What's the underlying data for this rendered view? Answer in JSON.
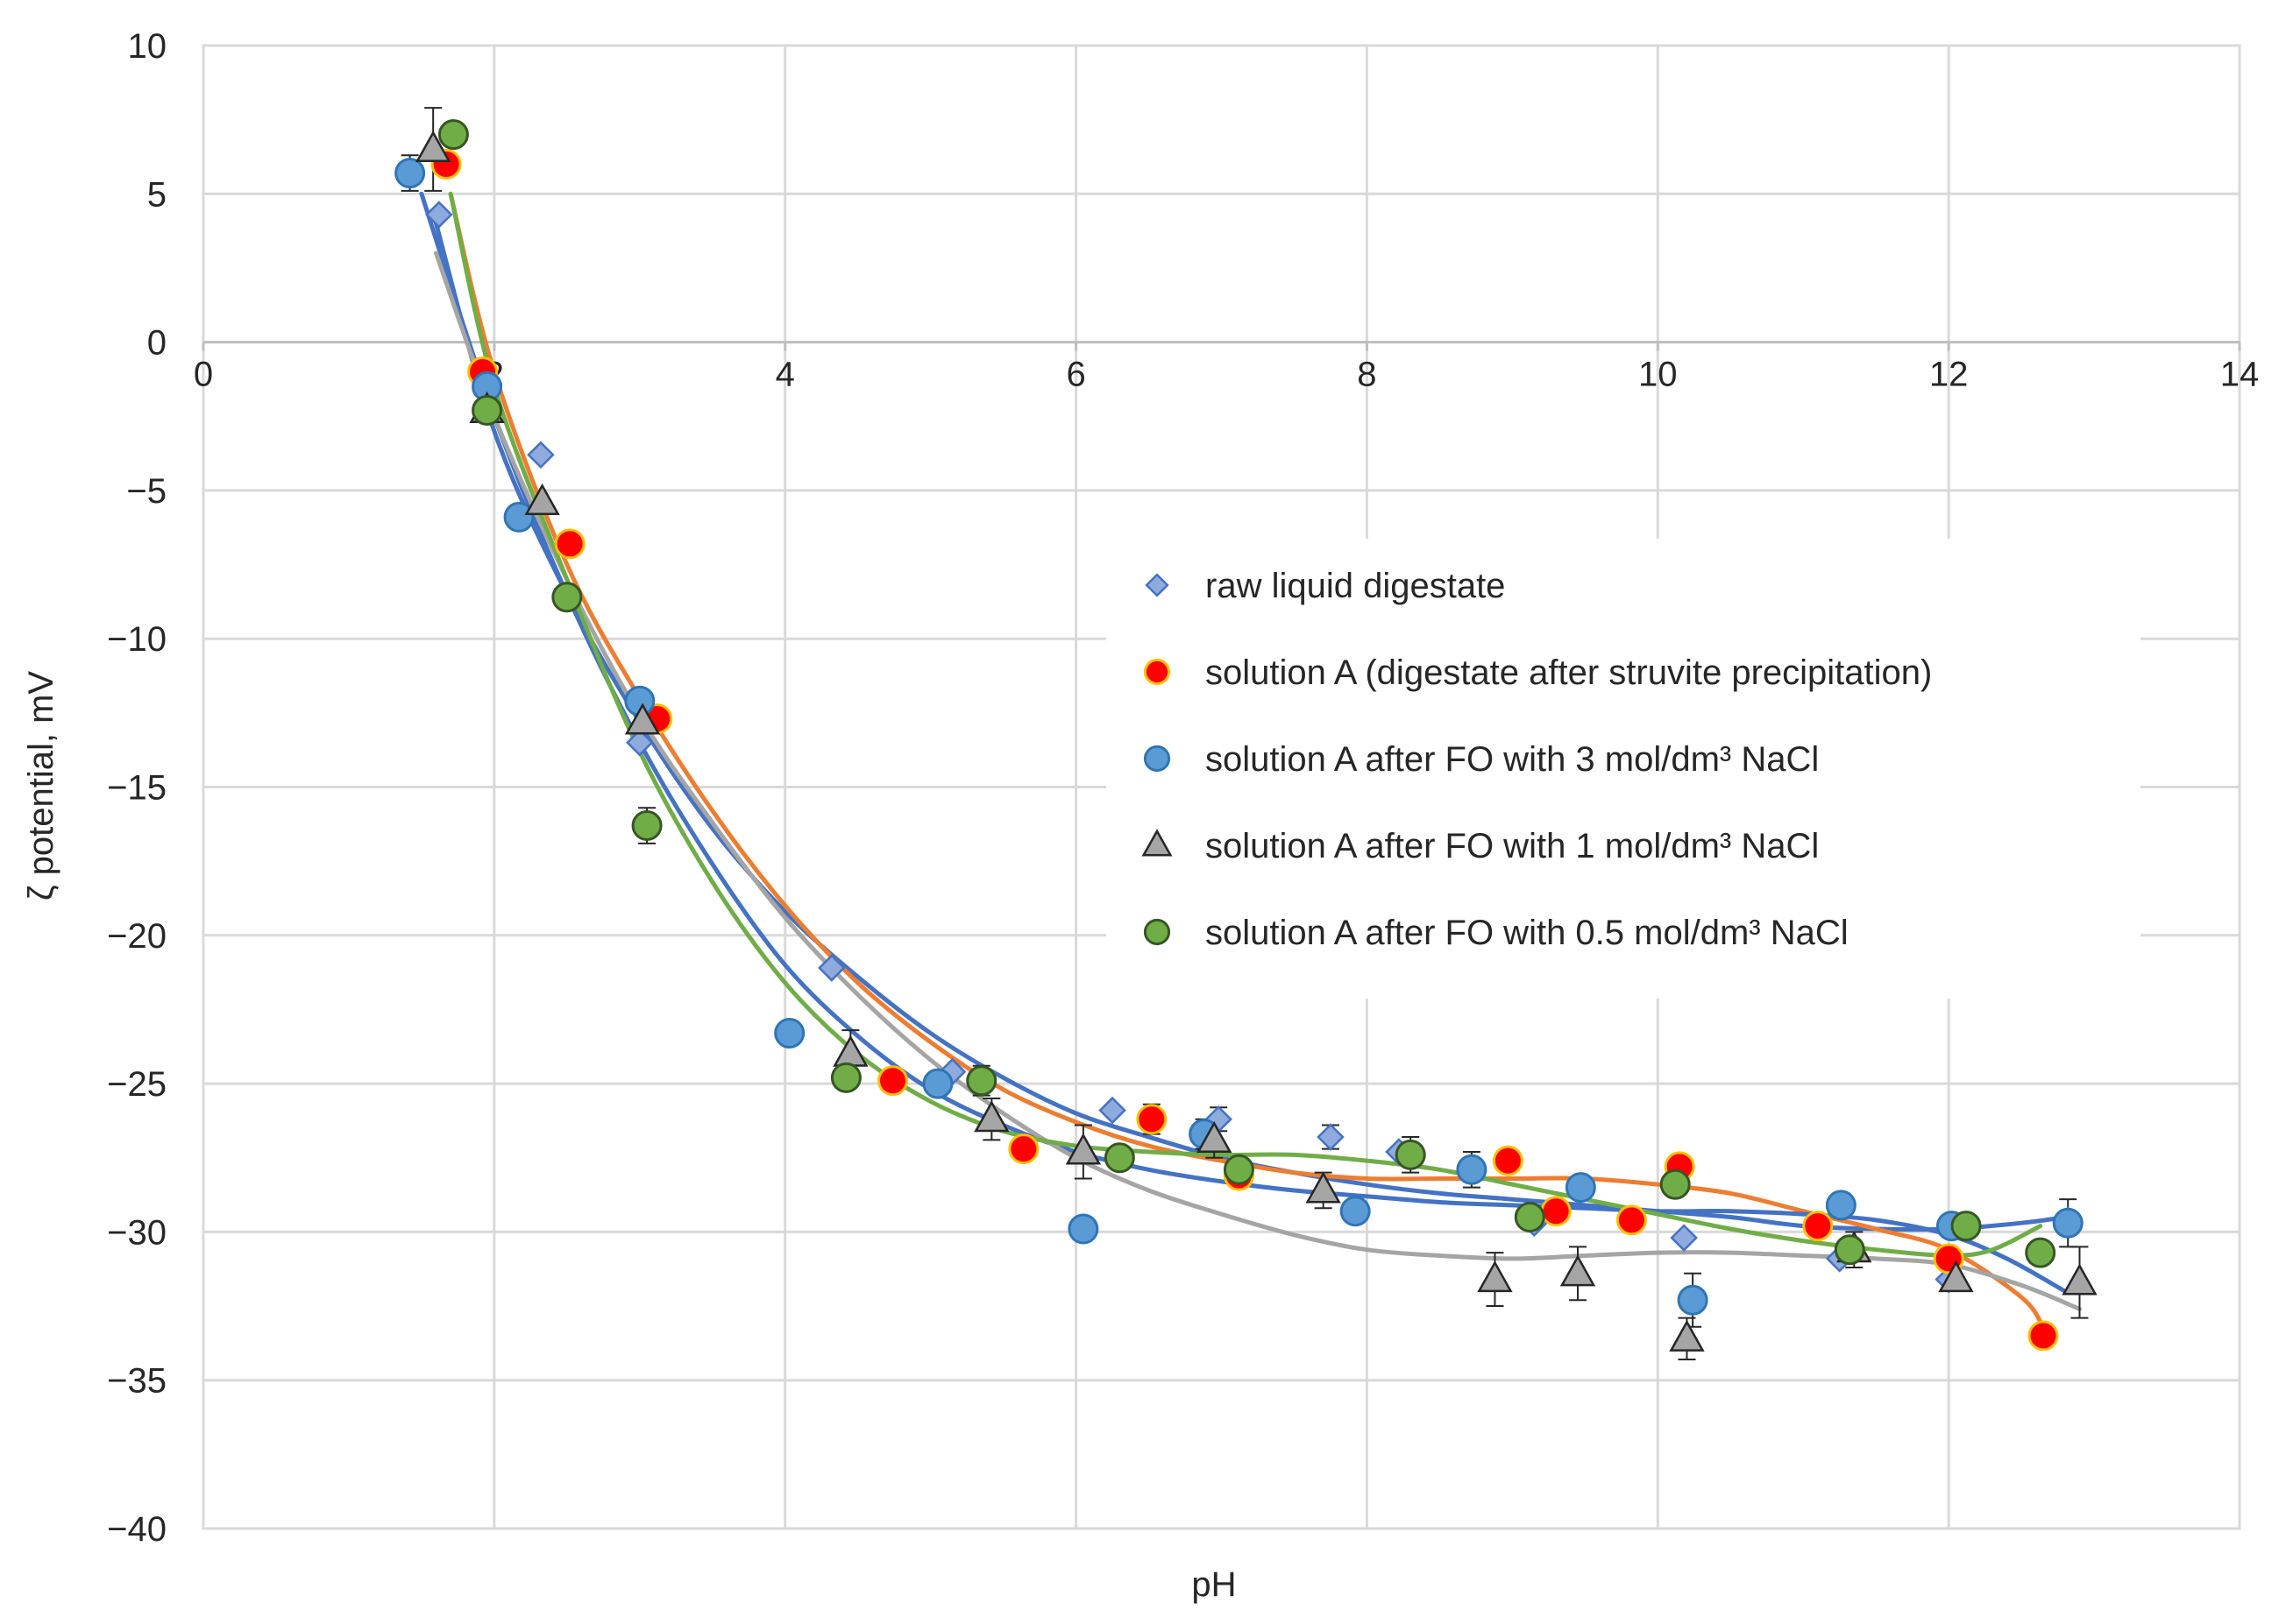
{
  "chart_data": {
    "type": "scatter",
    "title": "",
    "xlabel": "pH",
    "ylabel": "ζ potential, mV",
    "xlim": [
      0,
      14
    ],
    "ylim": [
      -40,
      10
    ],
    "xticks": [
      0,
      2,
      4,
      6,
      8,
      10,
      12,
      14
    ],
    "yticks": [
      10,
      5,
      0,
      -5,
      -10,
      -15,
      -20,
      -25,
      -30,
      -35,
      -40
    ],
    "xtick_labels": [
      "0",
      "2",
      "4",
      "6",
      "8",
      "10",
      "12",
      "14"
    ],
    "ytick_labels": [
      "10",
      "5",
      "0",
      "−5",
      "−10",
      "−15",
      "−20",
      "−25",
      "−30",
      "−35",
      "−40"
    ],
    "grid": true,
    "legend_position": "center-right",
    "series": [
      {
        "name": "raw liquid digestate",
        "marker": "diamond",
        "color": "#8faadc",
        "edge": "#4472c4",
        "trend_color": "#4472c4",
        "points": [
          [
            1.62,
            4.3,
            0
          ],
          [
            1.92,
            -1.2,
            0
          ],
          [
            2.32,
            -3.8,
            0
          ],
          [
            3.0,
            -13.5,
            0
          ],
          [
            4.32,
            -21.1,
            0
          ],
          [
            5.15,
            -24.6,
            0
          ],
          [
            6.25,
            -25.9,
            0
          ],
          [
            6.98,
            -26.2,
            0.4
          ],
          [
            7.75,
            -26.8,
            0.4
          ],
          [
            8.22,
            -27.3,
            0
          ],
          [
            9.15,
            -29.7,
            0
          ],
          [
            10.18,
            -30.2,
            0
          ],
          [
            11.25,
            -30.9,
            0
          ],
          [
            12.0,
            -31.6,
            0
          ],
          [
            12.82,
            -29.6,
            0
          ]
        ],
        "trend": [
          [
            1.6,
            4.0
          ],
          [
            2.0,
            -3.0
          ],
          [
            2.5,
            -8.5
          ],
          [
            3.0,
            -12.8
          ],
          [
            3.5,
            -16.4
          ],
          [
            4.0,
            -19.2
          ],
          [
            4.5,
            -21.4
          ],
          [
            5.0,
            -23.3
          ],
          [
            5.5,
            -24.8
          ],
          [
            6.0,
            -26.0
          ],
          [
            6.5,
            -26.8
          ],
          [
            7.0,
            -27.5
          ],
          [
            7.5,
            -28.0
          ],
          [
            8.0,
            -28.4
          ],
          [
            8.5,
            -28.7
          ],
          [
            9.0,
            -28.9
          ],
          [
            9.5,
            -29.1
          ],
          [
            10.0,
            -29.3
          ],
          [
            10.5,
            -29.5
          ],
          [
            11.0,
            -29.8
          ],
          [
            11.5,
            -29.9
          ],
          [
            12.0,
            -29.9
          ],
          [
            12.5,
            -29.7
          ],
          [
            12.8,
            -29.5
          ]
        ]
      },
      {
        "name": "solution A (digestate after struvite precipitation)",
        "marker": "circle",
        "color": "#ff0000",
        "edge": "#ffc000",
        "trend_color": "#ed7d31",
        "points": [
          [
            1.67,
            6.0,
            0
          ],
          [
            1.92,
            -1.0,
            0
          ],
          [
            2.52,
            -6.8,
            0
          ],
          [
            3.12,
            -12.7,
            0
          ],
          [
            4.74,
            -24.9,
            0
          ],
          [
            5.64,
            -27.2,
            0
          ],
          [
            6.52,
            -26.2,
            0.5
          ],
          [
            7.12,
            -28.1,
            0
          ],
          [
            8.97,
            -27.6,
            0
          ],
          [
            9.3,
            -29.3,
            0
          ],
          [
            9.82,
            -29.6,
            0
          ],
          [
            10.15,
            -27.8,
            0
          ],
          [
            11.1,
            -29.8,
            0
          ],
          [
            12.0,
            -30.9,
            0
          ],
          [
            12.65,
            -33.5,
            0
          ]
        ],
        "trend": [
          [
            1.7,
            5.0
          ],
          [
            2.0,
            -1.0
          ],
          [
            2.5,
            -7.5
          ],
          [
            3.0,
            -12.0
          ],
          [
            3.5,
            -15.8
          ],
          [
            4.0,
            -19.0
          ],
          [
            4.5,
            -21.6
          ],
          [
            5.0,
            -23.6
          ],
          [
            5.5,
            -25.2
          ],
          [
            6.0,
            -26.3
          ],
          [
            6.5,
            -27.1
          ],
          [
            7.0,
            -27.6
          ],
          [
            7.5,
            -28.0
          ],
          [
            8.0,
            -28.2
          ],
          [
            8.5,
            -28.2
          ],
          [
            9.0,
            -28.2
          ],
          [
            9.5,
            -28.2
          ],
          [
            10.0,
            -28.4
          ],
          [
            10.5,
            -28.7
          ],
          [
            11.0,
            -29.3
          ],
          [
            11.5,
            -29.9
          ],
          [
            12.0,
            -30.6
          ],
          [
            12.5,
            -32.2
          ],
          [
            12.65,
            -33.2
          ]
        ]
      },
      {
        "name": "solution A after FO with 3 mol/dm³ NaCl",
        "marker": "circle",
        "color": "#5b9bd5",
        "edge": "#2e75b6",
        "trend_color": "#4472c4",
        "points": [
          [
            1.42,
            5.7,
            0.6
          ],
          [
            1.95,
            -1.5,
            0
          ],
          [
            2.17,
            -5.9,
            0
          ],
          [
            3.0,
            -12.1,
            0
          ],
          [
            4.03,
            -23.3,
            0
          ],
          [
            5.05,
            -25.0,
            0
          ],
          [
            6.05,
            -29.9,
            0
          ],
          [
            6.88,
            -26.7,
            0.5
          ],
          [
            7.92,
            -29.3,
            0
          ],
          [
            8.72,
            -27.9,
            0.6
          ],
          [
            9.47,
            -28.5,
            0
          ],
          [
            10.24,
            -32.3,
            0.9
          ],
          [
            11.26,
            -29.1,
            0
          ],
          [
            12.02,
            -29.8,
            0
          ],
          [
            12.82,
            -29.7,
            0.8
          ]
        ],
        "trend": [
          [
            1.5,
            5.0
          ],
          [
            2.0,
            -2.5
          ],
          [
            2.5,
            -8.5
          ],
          [
            3.0,
            -13.5
          ],
          [
            3.5,
            -17.6
          ],
          [
            4.0,
            -21.0
          ],
          [
            4.5,
            -23.4
          ],
          [
            5.0,
            -25.2
          ],
          [
            5.5,
            -26.4
          ],
          [
            6.0,
            -27.3
          ],
          [
            6.5,
            -27.9
          ],
          [
            7.0,
            -28.3
          ],
          [
            7.5,
            -28.6
          ],
          [
            8.0,
            -28.8
          ],
          [
            8.5,
            -29.0
          ],
          [
            9.0,
            -29.1
          ],
          [
            9.5,
            -29.2
          ],
          [
            10.0,
            -29.3
          ],
          [
            10.5,
            -29.3
          ],
          [
            11.0,
            -29.4
          ],
          [
            11.5,
            -29.6
          ],
          [
            12.0,
            -30.1
          ],
          [
            12.4,
            -30.9
          ],
          [
            12.8,
            -32.0
          ]
        ]
      },
      {
        "name": "solution A after FO with 1 mol/dm³ NaCl",
        "marker": "triangle",
        "color": "#a5a5a5",
        "edge": "#262626",
        "trend_color": "#a5a5a5",
        "points": [
          [
            1.58,
            6.5,
            1.4
          ],
          [
            1.95,
            -2.3,
            0
          ],
          [
            2.33,
            -5.4,
            0
          ],
          [
            3.02,
            -12.8,
            0
          ],
          [
            4.45,
            -24.0,
            0.8
          ],
          [
            5.42,
            -26.2,
            0.7
          ],
          [
            6.05,
            -27.3,
            0.9
          ],
          [
            6.95,
            -26.9,
            0.6
          ],
          [
            7.7,
            -28.6,
            0.6
          ],
          [
            8.88,
            -31.6,
            0.9
          ],
          [
            9.45,
            -31.4,
            0.9
          ],
          [
            10.2,
            -33.6,
            0.7
          ],
          [
            11.35,
            -30.6,
            0.6
          ],
          [
            12.05,
            -31.6,
            0
          ],
          [
            12.9,
            -31.7,
            1.2
          ]
        ],
        "trend": [
          [
            1.6,
            3.0
          ],
          [
            2.0,
            -2.5
          ],
          [
            2.5,
            -8.0
          ],
          [
            3.0,
            -12.6
          ],
          [
            3.5,
            -16.2
          ],
          [
            4.0,
            -19.4
          ],
          [
            4.5,
            -22.0
          ],
          [
            5.0,
            -24.2
          ],
          [
            5.5,
            -26.0
          ],
          [
            6.0,
            -27.5
          ],
          [
            6.5,
            -28.6
          ],
          [
            7.0,
            -29.4
          ],
          [
            7.5,
            -30.1
          ],
          [
            8.0,
            -30.6
          ],
          [
            8.5,
            -30.8
          ],
          [
            9.0,
            -30.9
          ],
          [
            9.5,
            -30.8
          ],
          [
            10.0,
            -30.7
          ],
          [
            10.5,
            -30.7
          ],
          [
            11.0,
            -30.8
          ],
          [
            11.5,
            -30.9
          ],
          [
            12.0,
            -31.1
          ],
          [
            12.5,
            -31.8
          ],
          [
            12.9,
            -32.6
          ]
        ]
      },
      {
        "name": "solution A after FO with 0.5 mol/dm³ NaCl",
        "marker": "circle",
        "color": "#70ad47",
        "edge": "#375623",
        "trend_color": "#70ad47",
        "points": [
          [
            1.72,
            7.0,
            0
          ],
          [
            1.95,
            -2.3,
            0
          ],
          [
            2.5,
            -8.6,
            0
          ],
          [
            3.05,
            -16.3,
            0.6
          ],
          [
            4.42,
            -24.8,
            0
          ],
          [
            5.35,
            -24.9,
            0.5
          ],
          [
            6.3,
            -27.5,
            0
          ],
          [
            7.12,
            -27.9,
            0
          ],
          [
            8.3,
            -27.4,
            0.6
          ],
          [
            9.12,
            -29.5,
            0
          ],
          [
            10.12,
            -28.4,
            0
          ],
          [
            11.32,
            -30.6,
            0
          ],
          [
            12.12,
            -29.8,
            0
          ],
          [
            12.63,
            -30.7,
            0
          ]
        ],
        "trend": [
          [
            1.7,
            5.0
          ],
          [
            2.0,
            -1.5
          ],
          [
            2.5,
            -8.0
          ],
          [
            3.0,
            -13.8
          ],
          [
            3.5,
            -18.2
          ],
          [
            4.0,
            -21.6
          ],
          [
            4.5,
            -24.0
          ],
          [
            5.0,
            -25.6
          ],
          [
            5.5,
            -26.6
          ],
          [
            6.0,
            -27.1
          ],
          [
            6.5,
            -27.3
          ],
          [
            7.0,
            -27.4
          ],
          [
            7.5,
            -27.4
          ],
          [
            8.0,
            -27.6
          ],
          [
            8.5,
            -27.9
          ],
          [
            9.0,
            -28.4
          ],
          [
            9.5,
            -28.9
          ],
          [
            10.0,
            -29.4
          ],
          [
            10.5,
            -29.9
          ],
          [
            11.0,
            -30.3
          ],
          [
            11.5,
            -30.6
          ],
          [
            12.0,
            -30.8
          ],
          [
            12.3,
            -30.6
          ],
          [
            12.63,
            -29.8
          ]
        ]
      }
    ]
  }
}
